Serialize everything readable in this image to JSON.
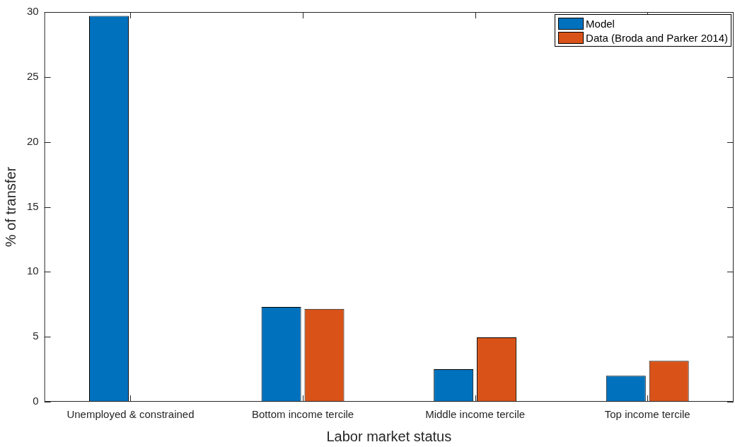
{
  "chart_data": {
    "type": "bar",
    "xlabel": "Labor market status",
    "ylabel": "% of transfer",
    "categories": [
      "Unemployed & constrained",
      "Bottom income tercile",
      "Middle income tercile",
      "Top income tercile"
    ],
    "series": [
      {
        "name": "Model",
        "color": "#0072bd",
        "values": [
          29.7,
          7.3,
          2.5,
          2.0
        ]
      },
      {
        "name": "Data (Broda and Parker 2014)",
        "color": "#d95319",
        "values": [
          null,
          7.15,
          4.95,
          3.15
        ]
      }
    ],
    "ylim": [
      0,
      30
    ],
    "yticks": [
      0,
      5,
      10,
      15,
      20,
      25,
      30
    ],
    "grid": false,
    "legend": "top right"
  }
}
